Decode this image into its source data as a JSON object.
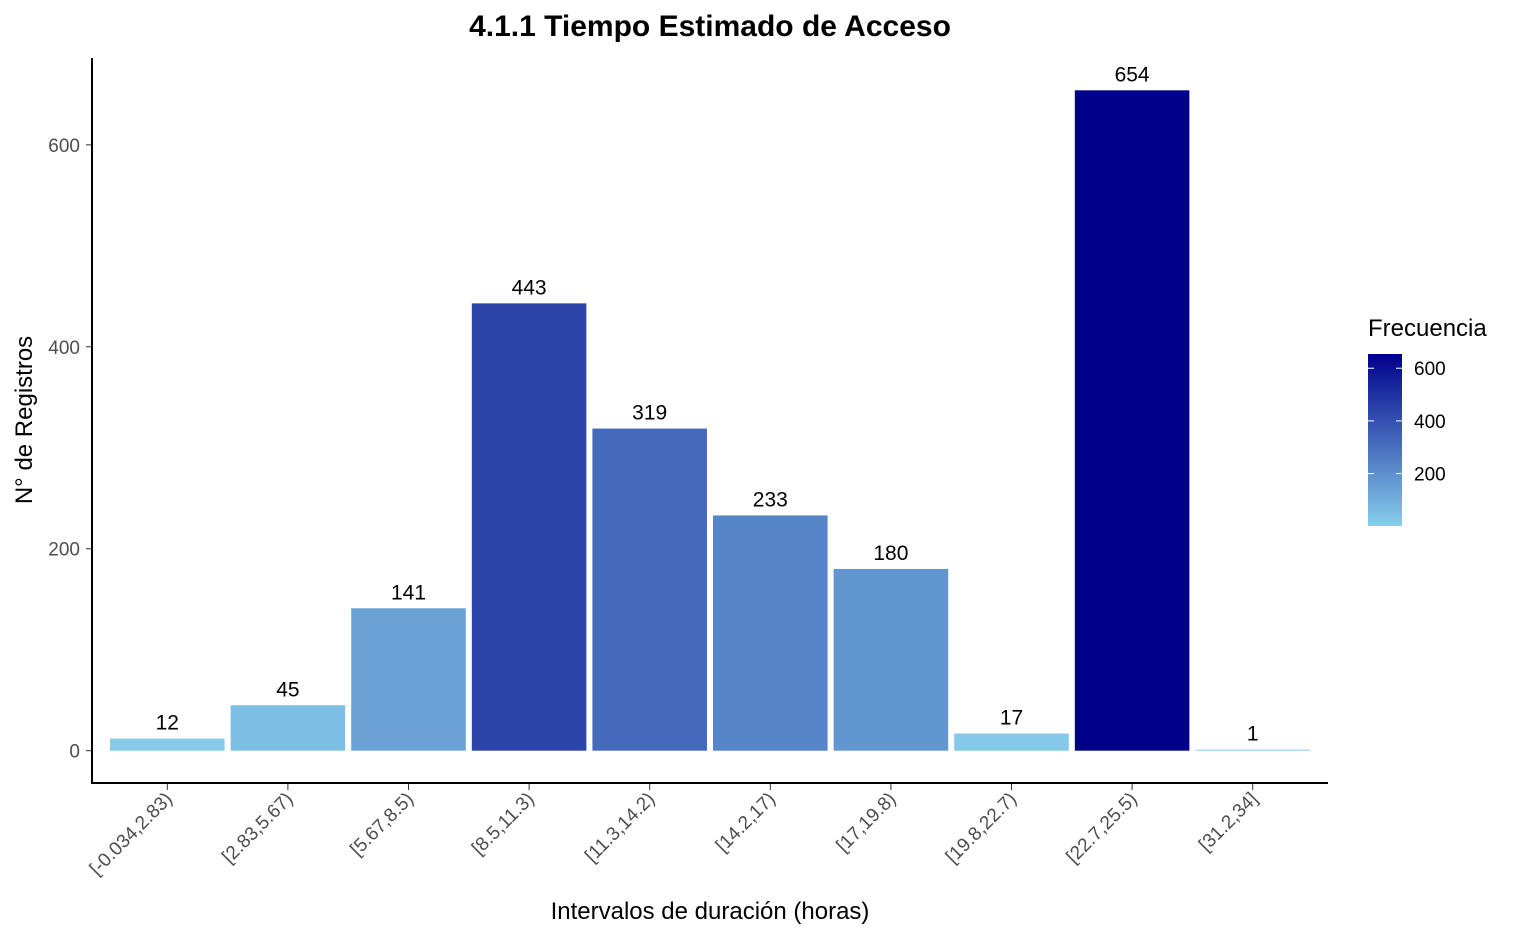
{
  "chart_data": {
    "type": "bar",
    "title": "4.1.1 Tiempo Estimado de Acceso",
    "xlabel": "Intervalos de duración (horas)",
    "ylabel": "N° de Registros",
    "categories": [
      "[-0.034,2.83)",
      "[2.83,5.67)",
      "[5.67,8.5)",
      "[8.5,11.3)",
      "[11.3,14.2)",
      "[14.2,17)",
      "[17,19.8)",
      "[19.8,22.7)",
      "[22.7,25.5)",
      "[31.2,34]"
    ],
    "values": [
      12,
      45,
      141,
      443,
      319,
      233,
      180,
      17,
      654,
      1
    ],
    "data_labels": [
      "12",
      "45",
      "141",
      "443",
      "319",
      "233",
      "180",
      "17",
      "654",
      "1"
    ],
    "y_ticks": [
      0,
      200,
      400,
      600
    ],
    "y_tick_labels": [
      "0",
      "200",
      "400",
      "600"
    ],
    "ylim": [
      -32,
      686
    ],
    "grid": false,
    "legend": {
      "title": "Frecuencia",
      "placement": "right",
      "ticks": [
        200,
        400,
        600
      ],
      "tick_labels": [
        "200",
        "400",
        "600"
      ],
      "range": [
        1,
        654
      ],
      "color_low": "#87CEEB",
      "color_high": "#00008B"
    }
  }
}
